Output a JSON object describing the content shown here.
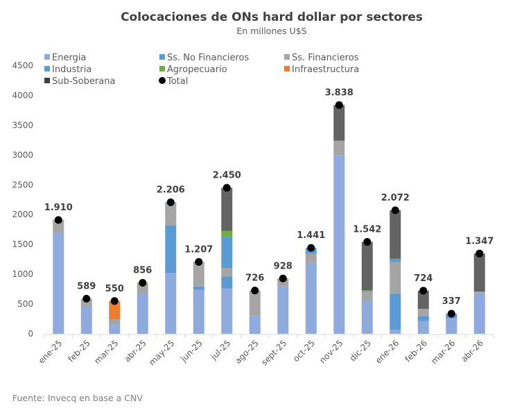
{
  "chart_data": {
    "type": "bar",
    "stacked": true,
    "title": "Colocaciones de ONs hard dollar por sectores",
    "subtitle": "En millones U$S",
    "source": "Fuente: Invecq en base a CNV",
    "ylim": [
      0,
      4500
    ],
    "yticks": [
      0,
      500,
      1000,
      1500,
      2000,
      2500,
      3000,
      3500,
      4000,
      4500
    ],
    "grid": false,
    "legend_position": "top-left",
    "categories": [
      "ene-25",
      "feb-25",
      "mar-25",
      "abr-25",
      "may-25",
      "jun-25",
      "jul-25",
      "ago-25",
      "sept-25",
      "oct-25",
      "nov-25",
      "dic-25",
      "ene-26",
      "feb-26",
      "mar-26",
      "abr-26"
    ],
    "series": [
      {
        "name": "Energia",
        "color": "#8faadc",
        "values": [
          1700,
          465,
          150,
          670,
          1020,
          740,
          760,
          300,
          795,
          1190,
          3000,
          560,
          70,
          215,
          262,
          678
        ]
      },
      {
        "name": "Ss. No Financieros",
        "color": "#5b9bd5",
        "values": [
          0,
          0,
          0,
          0,
          800,
          54,
          200,
          0,
          0,
          0,
          0,
          0,
          600,
          85,
          75,
          0
        ]
      },
      {
        "name": "Ss. Financieros",
        "color": "#a5a5a5",
        "values": [
          200,
          124,
          95,
          170,
          366,
          413,
          146,
          416,
          115,
          155,
          240,
          150,
          535,
          118,
          0,
          30
        ]
      },
      {
        "name": "Industria",
        "color": "#5b9bd5",
        "values": [
          10,
          0,
          0,
          0,
          20,
          0,
          520,
          0,
          0,
          96,
          0,
          0,
          54,
          0,
          0,
          0
        ]
      },
      {
        "name": "Agropecuario",
        "color": "#70ad47",
        "values": [
          0,
          0,
          0,
          16,
          0,
          0,
          103,
          10,
          0,
          0,
          0,
          20,
          0,
          0,
          0,
          0
        ]
      },
      {
        "name": "Infraestructura",
        "color": "#ed7d31",
        "values": [
          0,
          0,
          305,
          0,
          0,
          0,
          0,
          0,
          18,
          0,
          0,
          0,
          0,
          0,
          0,
          0
        ]
      },
      {
        "name": "Sub-Soberana",
        "color": "#636363",
        "values": [
          0,
          0,
          0,
          0,
          0,
          0,
          721,
          0,
          0,
          0,
          598,
          812,
          813,
          306,
          0,
          639
        ]
      }
    ],
    "total": {
      "name": "Total",
      "color": "#000000",
      "values": [
        1910,
        589,
        550,
        856,
        2206,
        1207,
        2450,
        726,
        928,
        1441,
        3838,
        1542,
        2072,
        724,
        337,
        1347
      ],
      "labels": [
        "1.910",
        "589",
        "550",
        "856",
        "2.206",
        "1.207",
        "2.450",
        "726",
        "928",
        "1.441",
        "3.838",
        "1.542",
        "2.072",
        "724",
        "337",
        "1.347"
      ]
    }
  }
}
